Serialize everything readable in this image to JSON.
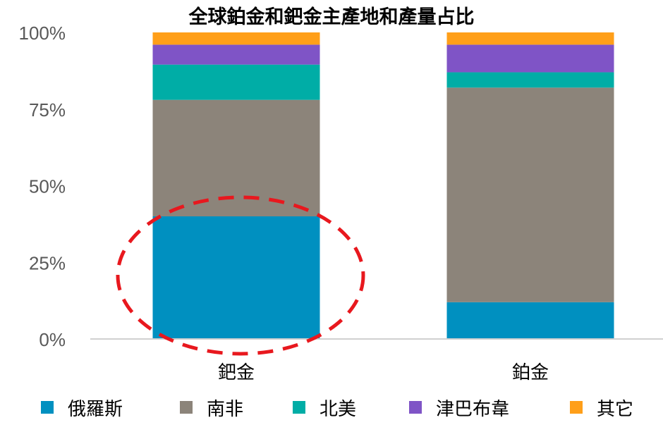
{
  "chart_data": {
    "type": "bar",
    "stacked": true,
    "title": "全球鉑金和鈀金主產地和產量占比",
    "xlabel": "",
    "ylabel": "",
    "ylim": [
      0,
      100
    ],
    "yticks": [
      "0%",
      "25%",
      "50%",
      "75%",
      "100%"
    ],
    "ytick_values": [
      0,
      25,
      50,
      75,
      100
    ],
    "grid": false,
    "legend_position": "bottom",
    "categories": [
      "鈀金",
      "鉑金"
    ],
    "series": [
      {
        "name": "俄羅斯",
        "color": "#0090C0",
        "values": [
          40,
          12
        ]
      },
      {
        "name": "南非",
        "color": "#8C847A",
        "values": [
          38,
          70
        ]
      },
      {
        "name": "北美",
        "color": "#00ADA6",
        "values": [
          11.5,
          5
        ]
      },
      {
        "name": "津巴布韋",
        "color": "#7F54C6",
        "values": [
          6.5,
          9
        ]
      },
      {
        "name": "其它",
        "color": "#FF9F19",
        "values": [
          4,
          4
        ]
      }
    ],
    "annotations": [
      {
        "type": "dashed-ellipse",
        "color": "#E8181E",
        "target": "鈀金 俄羅斯"
      }
    ]
  }
}
